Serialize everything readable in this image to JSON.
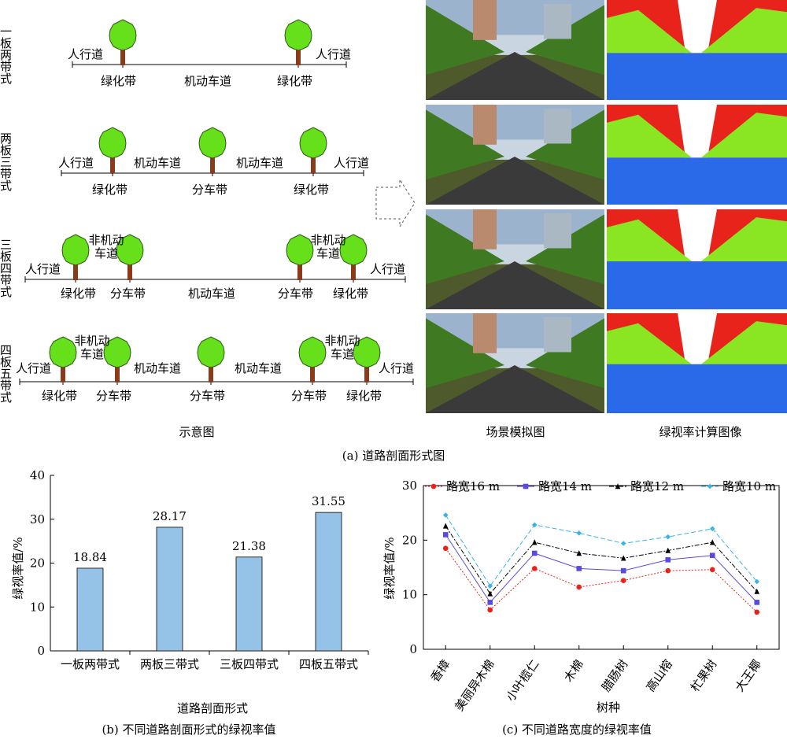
{
  "diagram": {
    "rows": [
      {
        "side_label": "一板两带式",
        "labels": [
          "人行道",
          "绿化带",
          "机动车道",
          "绿化带",
          "人行道"
        ]
      },
      {
        "side_label": "两板三带式",
        "labels": [
          "人行道",
          "绿化带",
          "机动车道",
          "分车带",
          "机动车道",
          "绿化带",
          "人行道"
        ]
      },
      {
        "side_label": "三板四带式",
        "labels": [
          "人行道",
          "绿化带",
          "非机动车道",
          "分车带",
          "机动车道",
          "分车带",
          "非机动车道",
          "绿化带",
          "人行道"
        ]
      },
      {
        "side_label": "四板五带式",
        "labels": [
          "人行道",
          "绿化带",
          "非机动车道",
          "分车带",
          "机动车道",
          "分车带",
          "机动车道",
          "分车带",
          "非机动车道",
          "绿化带",
          "人行道"
        ]
      }
    ],
    "col_captions": [
      "示意图",
      "场景模拟图",
      "绿视率计算图像"
    ],
    "figure_caption": "(a) 道路剖面形式图",
    "colors": {
      "tree": "#66e01a",
      "trunk": "#8b3a1a",
      "sky_mask": "#e8231c",
      "green_mask": "#8ae622",
      "road_mask": "#2a6ae8"
    }
  },
  "chart_data": [
    {
      "type": "bar",
      "categories": [
        "一板两带式",
        "两板三带式",
        "三板四带式",
        "四板五带式"
      ],
      "values": [
        18.84,
        28.17,
        21.38,
        31.55
      ],
      "value_labels": [
        "18.84",
        "28.17",
        "21.38",
        "31.55"
      ],
      "xlabel": "道路剖面形式",
      "ylabel": "绿视率值/%",
      "ylim": [
        0,
        40
      ],
      "yticks": [
        "0",
        "10",
        "20",
        "30",
        "40"
      ],
      "bar_color": "#95c3e8",
      "caption": "(b) 不同道路剖面形式的绿视率值"
    },
    {
      "type": "line",
      "categories": [
        "香樟",
        "美丽异木棉",
        "小叶榄仁",
        "木棉",
        "腊肠树",
        "高山榕",
        "杧果树",
        "大王椰"
      ],
      "series": [
        {
          "name": "路宽16 m",
          "color": "#e8231c",
          "marker": "circle",
          "values": [
            18.5,
            7.2,
            14.8,
            11.4,
            12.6,
            14.4,
            14.6,
            6.8
          ]
        },
        {
          "name": "路宽14 m",
          "color": "#5a4ae0",
          "marker": "square",
          "values": [
            21.0,
            8.6,
            17.6,
            14.8,
            14.4,
            16.4,
            17.2,
            8.6
          ]
        },
        {
          "name": "路宽12 m",
          "color": "#000000",
          "marker": "triangle",
          "values": [
            22.6,
            10.2,
            19.6,
            17.6,
            16.7,
            18.1,
            19.6,
            10.6
          ]
        },
        {
          "name": "路宽10 m",
          "color": "#3ab4e8",
          "marker": "diamond",
          "values": [
            24.6,
            11.6,
            22.8,
            21.3,
            19.4,
            20.6,
            22.1,
            12.4
          ]
        }
      ],
      "xlabel": "树种",
      "ylabel": "绿视率值/%",
      "ylim": [
        0,
        30
      ],
      "yticks": [
        "0",
        "10",
        "20",
        "30"
      ],
      "caption": "(c) 不同道路宽度的绿视率值"
    }
  ]
}
